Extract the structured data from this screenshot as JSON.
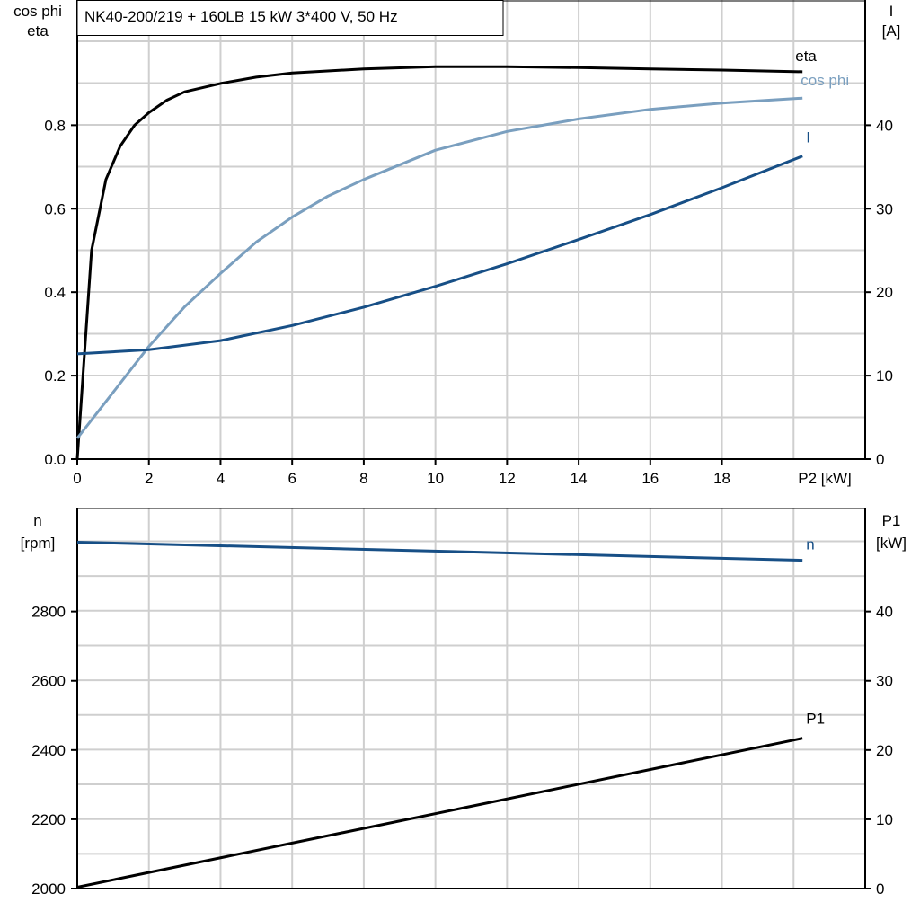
{
  "chart_data": [
    {
      "type": "line",
      "title": "NK40-200/219 + 160LB   15 kW   3*400 V, 50 Hz",
      "xlabel": "P2 [kW]",
      "ylabel_left": [
        "cos phi",
        "eta"
      ],
      "ylabel_right": [
        "I",
        "[A]"
      ],
      "xlim": [
        0,
        22
      ],
      "ylim_left": [
        0,
        1.1
      ],
      "ylim_right": [
        0,
        55
      ],
      "x_ticks": [
        0,
        2,
        4,
        6,
        8,
        10,
        12,
        14,
        16,
        18
      ],
      "y_ticks_left": [
        "0.0",
        "0.2",
        "0.4",
        "0.6",
        "0.8"
      ],
      "y_ticks_right": [
        "0",
        "10",
        "20",
        "30",
        "40"
      ],
      "grid": true,
      "series": [
        {
          "name": "eta",
          "axis": "left",
          "color": "#000000",
          "x": [
            0,
            0.4,
            0.8,
            1.2,
            1.6,
            2,
            2.5,
            3,
            4,
            5,
            6,
            8,
            10,
            12,
            14,
            16,
            18,
            20.25
          ],
          "y": [
            0,
            0.5,
            0.67,
            0.75,
            0.8,
            0.83,
            0.86,
            0.88,
            0.9,
            0.915,
            0.925,
            0.935,
            0.94,
            0.94,
            0.938,
            0.935,
            0.932,
            0.928
          ]
        },
        {
          "name": "cos phi",
          "axis": "left",
          "color": "#7a9fbf",
          "x": [
            0,
            1,
            2,
            3,
            4,
            5,
            6,
            7,
            8,
            10,
            12,
            14,
            16,
            18,
            20.25
          ],
          "y": [
            0.05,
            0.16,
            0.27,
            0.365,
            0.445,
            0.52,
            0.58,
            0.63,
            0.67,
            0.74,
            0.785,
            0.815,
            0.838,
            0.853,
            0.865
          ]
        },
        {
          "name": "I",
          "axis": "right",
          "color": "#174f86",
          "x": [
            0,
            2,
            4,
            6,
            8,
            10,
            12,
            14,
            16,
            18,
            20.25
          ],
          "y": [
            12.6,
            13.1,
            14.2,
            16.0,
            18.2,
            20.7,
            23.4,
            26.3,
            29.3,
            32.5,
            36.3
          ]
        }
      ]
    },
    {
      "type": "line",
      "xlim": [
        0,
        22
      ],
      "ylabel_left": [
        "n",
        "[rpm]"
      ],
      "ylabel_right": [
        "P1",
        "[kW]"
      ],
      "ylim_left": [
        2000,
        3100
      ],
      "ylim_right": [
        0,
        55
      ],
      "y_ticks_left": [
        "2000",
        "2200",
        "2400",
        "2600",
        "2800"
      ],
      "y_ticks_right": [
        "0",
        "10",
        "20",
        "30",
        "40"
      ],
      "grid": true,
      "series": [
        {
          "name": "n",
          "axis": "left",
          "color": "#174f86",
          "x": [
            0,
            20.25
          ],
          "y": [
            3000,
            2948
          ]
        },
        {
          "name": "P1",
          "axis": "right",
          "color": "#000000",
          "x": [
            0,
            20.25
          ],
          "y": [
            0.2,
            21.7
          ]
        }
      ]
    }
  ]
}
